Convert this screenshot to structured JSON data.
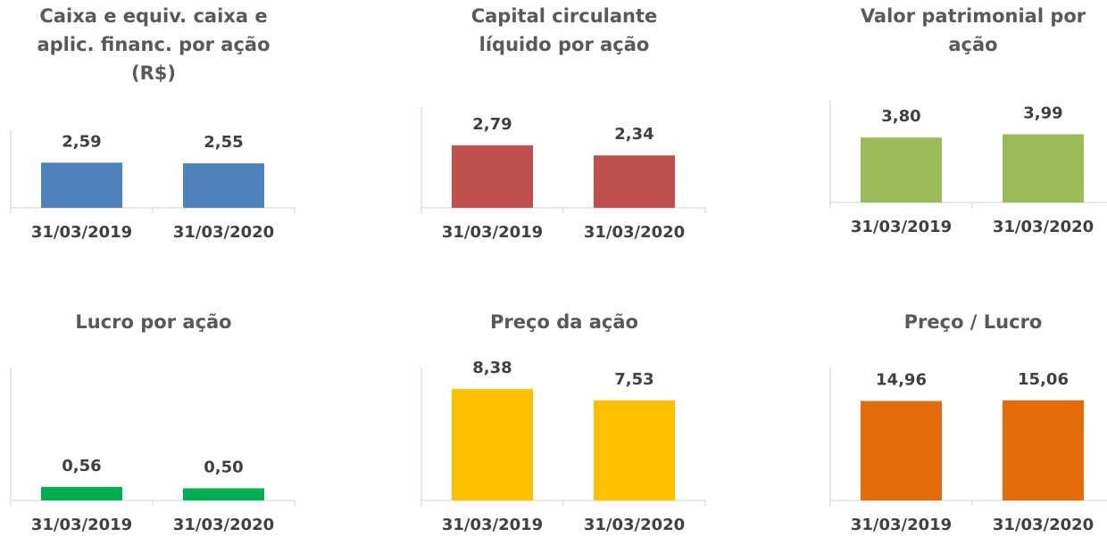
{
  "chart_data": [
    {
      "type": "bar",
      "title": "Caixa e equiv. caixa e aplic. financ. por ação (R$)",
      "categories": [
        "31/03/2019",
        "31/03/2020"
      ],
      "values": [
        2.59,
        2.55
      ],
      "value_labels": [
        "2,59",
        "2,55"
      ],
      "color": "#4f81bd",
      "ylim": [
        0,
        4.5
      ]
    },
    {
      "type": "bar",
      "title": "Capital circulante líquido por ação",
      "categories": [
        "31/03/2019",
        "31/03/2020"
      ],
      "values": [
        2.79,
        2.34
      ],
      "value_labels": [
        "2,79",
        "2,34"
      ],
      "color": "#c0504d",
      "ylim": [
        0,
        4.5
      ]
    },
    {
      "type": "bar",
      "title": "Valor patrimonial por ação",
      "categories": [
        "31/03/2019",
        "31/03/2020"
      ],
      "values": [
        3.8,
        3.99
      ],
      "value_labels": [
        "3,80",
        "3,99"
      ],
      "color": "#9bbb59",
      "ylim": [
        0,
        6
      ]
    },
    {
      "type": "bar",
      "title": "Lucro por ação",
      "categories": [
        "31/03/2019",
        "31/03/2020"
      ],
      "values": [
        0.56,
        0.5
      ],
      "value_labels": [
        "0,56",
        "0,50"
      ],
      "color": "#00b050",
      "ylim": [
        0,
        5.5
      ]
    },
    {
      "type": "bar",
      "title": "Preço da ação",
      "categories": [
        "31/03/2019",
        "31/03/2020"
      ],
      "values": [
        8.38,
        7.53
      ],
      "value_labels": [
        "8,38",
        "7,53"
      ],
      "color": "#ffc000",
      "ylim": [
        0,
        10
      ]
    },
    {
      "type": "bar",
      "title": "Preço / Lucro",
      "categories": [
        "31/03/2019",
        "31/03/2020"
      ],
      "values": [
        14.96,
        15.06
      ],
      "value_labels": [
        "14,96",
        "15,06"
      ],
      "color": "#e36c09",
      "ylim": [
        0,
        20
      ]
    }
  ]
}
